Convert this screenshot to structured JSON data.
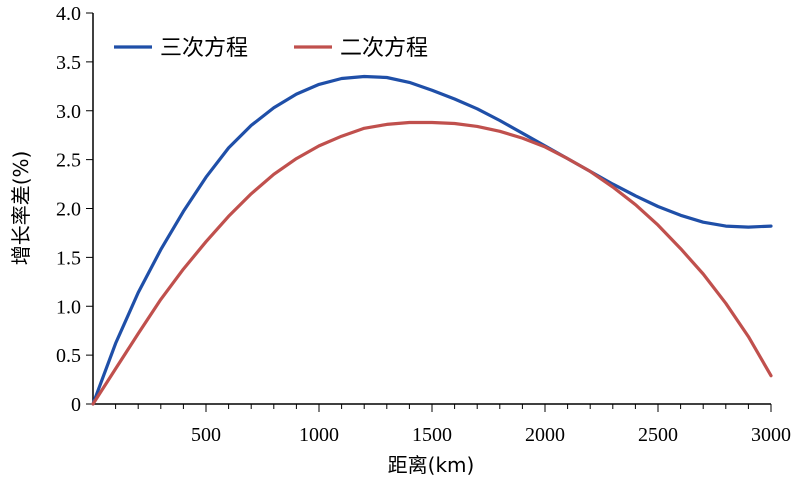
{
  "chart_data": {
    "type": "line",
    "title": "",
    "xlabel": "距离(km)",
    "ylabel": "增长率差(%)",
    "xlim": [
      0,
      3000
    ],
    "ylim": [
      0,
      4.0
    ],
    "x_ticks": [
      500,
      1000,
      1500,
      2000,
      2500,
      3000
    ],
    "x_tick_labels": [
      "500",
      "1000",
      "1500",
      "2000",
      "2500",
      "3000"
    ],
    "y_ticks": [
      0,
      0.5,
      1.0,
      1.5,
      2.0,
      2.5,
      3.0,
      3.5,
      4.0
    ],
    "y_tick_labels": [
      "0",
      "0.5",
      "1.0",
      "1.5",
      "2.0",
      "2.5",
      "3.0",
      "3.5",
      "4.0"
    ],
    "grid": false,
    "legend_position": "top-left",
    "x": [
      0,
      100,
      200,
      300,
      400,
      500,
      600,
      700,
      800,
      900,
      1000,
      1100,
      1200,
      1300,
      1400,
      1500,
      1600,
      1700,
      1800,
      1900,
      2000,
      2100,
      2200,
      2300,
      2400,
      2500,
      2600,
      2700,
      2800,
      2900,
      3000
    ],
    "series": [
      {
        "name": "三次方程",
        "color": "#1f4fa8",
        "values": [
          0,
          0.62,
          1.14,
          1.58,
          1.97,
          2.32,
          2.62,
          2.85,
          3.03,
          3.17,
          3.27,
          3.33,
          3.35,
          3.34,
          3.29,
          3.21,
          3.12,
          3.02,
          2.9,
          2.77,
          2.64,
          2.51,
          2.38,
          2.25,
          2.13,
          2.02,
          1.93,
          1.86,
          1.82,
          1.81,
          1.82
        ]
      },
      {
        "name": "二次方程",
        "color": "#c0504d",
        "values": [
          0,
          0.36,
          0.72,
          1.07,
          1.38,
          1.66,
          1.92,
          2.15,
          2.35,
          2.51,
          2.64,
          2.74,
          2.82,
          2.86,
          2.88,
          2.88,
          2.87,
          2.84,
          2.79,
          2.72,
          2.63,
          2.51,
          2.38,
          2.22,
          2.04,
          1.83,
          1.59,
          1.33,
          1.03,
          0.69,
          0.29
        ]
      }
    ]
  }
}
